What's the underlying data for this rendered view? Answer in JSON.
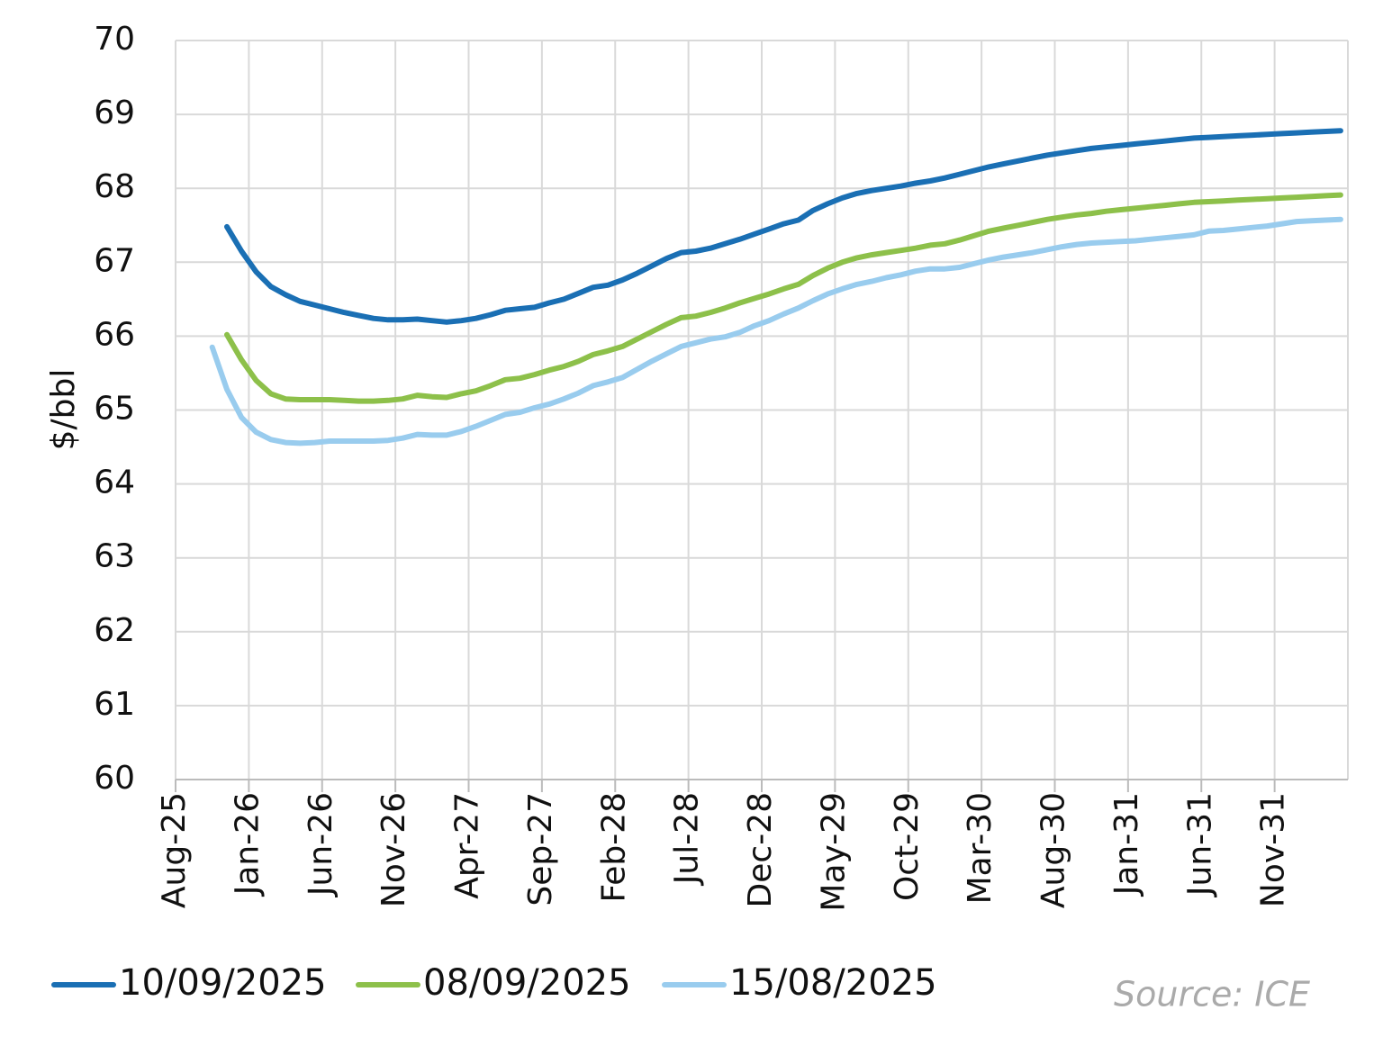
{
  "chart_data": {
    "type": "line",
    "ylabel": "$/bbl",
    "source": "Source: ICE",
    "categories": [
      "Aug-25",
      null,
      null,
      null,
      null,
      "Jan-26",
      null,
      null,
      null,
      null,
      "Jun-26",
      null,
      null,
      null,
      null,
      "Nov-26",
      null,
      null,
      null,
      null,
      "Apr-27",
      null,
      null,
      null,
      null,
      "Sep-27",
      null,
      null,
      null,
      null,
      "Feb-28",
      null,
      null,
      null,
      null,
      "Jul-28",
      null,
      null,
      null,
      null,
      "Dec-28",
      null,
      null,
      null,
      null,
      "May-29",
      null,
      null,
      null,
      null,
      "Oct-29",
      null,
      null,
      null,
      null,
      "Mar-30",
      null,
      null,
      null,
      null,
      "Aug-30",
      null,
      null,
      null,
      null,
      "Jan-31",
      null,
      null,
      null,
      null,
      "Jun-31",
      null,
      null,
      null,
      null,
      "Nov-31",
      null,
      null,
      null,
      null
    ],
    "series": [
      {
        "name": "10/09/2025",
        "color": "#1a6fb4",
        "values": [
          null,
          null,
          null,
          67.48,
          67.15,
          66.87,
          66.67,
          66.56,
          66.47,
          66.42,
          66.37,
          66.32,
          66.28,
          66.24,
          66.22,
          66.22,
          66.23,
          66.21,
          66.19,
          66.21,
          66.24,
          66.29,
          66.35,
          66.37,
          66.39,
          66.45,
          66.5,
          66.58,
          66.66,
          66.69,
          66.76,
          66.85,
          66.95,
          67.05,
          67.13,
          67.15,
          67.19,
          67.25,
          67.31,
          67.38,
          67.45,
          67.52,
          67.57,
          67.7,
          67.79,
          67.87,
          67.93,
          67.97,
          68.0,
          68.03,
          68.07,
          68.1,
          68.14,
          68.19,
          68.24,
          68.29,
          68.33,
          68.37,
          68.41,
          68.45,
          68.48,
          68.51,
          68.54,
          68.56,
          68.58,
          68.6,
          68.62,
          68.64,
          68.66,
          68.68,
          68.69,
          68.7,
          68.71,
          68.72,
          68.73,
          68.74,
          68.75,
          68.76,
          68.77,
          68.78
        ]
      },
      {
        "name": "08/09/2025",
        "color": "#8dc04a",
        "values": [
          null,
          null,
          null,
          66.02,
          65.68,
          65.4,
          65.22,
          65.15,
          65.14,
          65.14,
          65.14,
          65.13,
          65.12,
          65.12,
          65.13,
          65.15,
          65.2,
          65.18,
          65.17,
          65.22,
          65.26,
          65.33,
          65.41,
          65.43,
          65.48,
          65.54,
          65.59,
          65.66,
          65.75,
          65.8,
          65.86,
          65.96,
          66.06,
          66.16,
          66.25,
          66.27,
          66.32,
          66.38,
          66.45,
          66.51,
          66.57,
          66.64,
          66.7,
          66.82,
          66.92,
          67.0,
          67.06,
          67.1,
          67.13,
          67.16,
          67.19,
          67.23,
          67.25,
          67.3,
          67.36,
          67.42,
          67.46,
          67.5,
          67.54,
          67.58,
          67.61,
          67.64,
          67.66,
          67.69,
          67.71,
          67.73,
          67.75,
          67.77,
          67.79,
          67.81,
          67.82,
          67.83,
          67.84,
          67.85,
          67.86,
          67.87,
          67.88,
          67.89,
          67.9,
          67.91
        ]
      },
      {
        "name": "15/08/2025",
        "color": "#99ccee",
        "values": [
          null,
          null,
          65.85,
          65.28,
          64.9,
          64.7,
          64.6,
          64.56,
          64.55,
          64.56,
          64.58,
          64.58,
          64.58,
          64.58,
          64.59,
          64.62,
          64.67,
          64.66,
          64.66,
          64.71,
          64.78,
          64.86,
          64.94,
          64.97,
          65.03,
          65.08,
          65.15,
          65.23,
          65.33,
          65.38,
          65.44,
          65.55,
          65.66,
          65.76,
          65.86,
          65.91,
          65.96,
          65.99,
          66.05,
          66.14,
          66.21,
          66.3,
          66.38,
          66.48,
          66.57,
          66.64,
          66.7,
          66.74,
          66.79,
          66.83,
          66.88,
          66.91,
          66.91,
          66.93,
          66.98,
          67.03,
          67.07,
          67.1,
          67.13,
          67.17,
          67.21,
          67.24,
          67.26,
          67.27,
          67.28,
          67.29,
          67.31,
          67.33,
          67.35,
          67.37,
          67.42,
          67.43,
          67.45,
          67.47,
          67.49,
          67.52,
          67.55,
          67.56,
          67.57,
          67.58
        ]
      }
    ],
    "ylim": [
      60,
      70
    ],
    "yticks": [
      60,
      61,
      62,
      63,
      64,
      65,
      66,
      67,
      68,
      69,
      70
    ],
    "grid": true,
    "legend": "bottom"
  }
}
